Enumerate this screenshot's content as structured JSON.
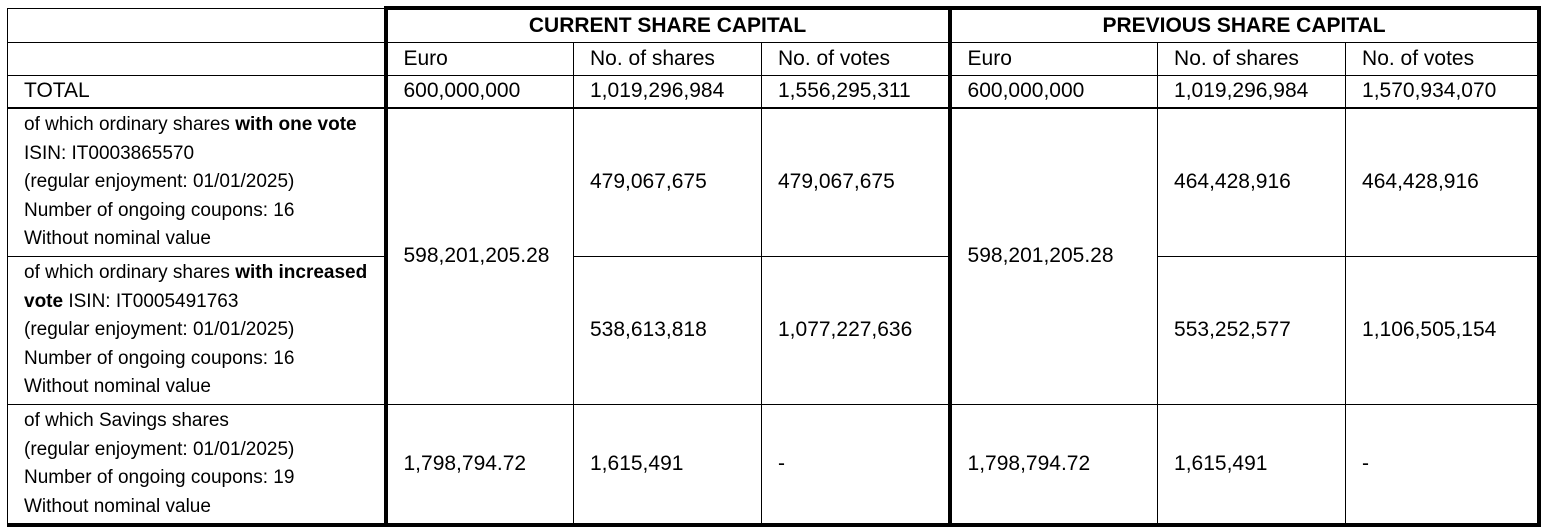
{
  "headers": {
    "current": "CURRENT SHARE CAPITAL",
    "previous": "PREVIOUS SHARE CAPITAL"
  },
  "subheaders": {
    "current": [
      "Euro",
      "No. of shares",
      "No. of votes"
    ],
    "previous": [
      "Euro",
      "No. of shares",
      "No. of votes"
    ]
  },
  "total": {
    "label": "TOTAL",
    "current": [
      "600,000,000",
      "1,019,296,984",
      "1,556,295,311"
    ],
    "previous": [
      "600,000,000",
      "1,019,296,984",
      "1,570,934,070"
    ]
  },
  "ordinary_euro": {
    "current": "598,201,205.28",
    "previous": "598,201,205.28"
  },
  "rows": [
    {
      "desc": {
        "pre": "of which ordinary shares ",
        "bold": "with one vote",
        "post": " ISIN: IT0003865570",
        "line2": "(regular enjoyment: 01/01/2025)",
        "line3": "Number of ongoing coupons: 16",
        "line4": "Without nominal value"
      },
      "current": [
        "479,067,675",
        "479,067,675"
      ],
      "previous": [
        "464,428,916",
        "464,428,916"
      ]
    },
    {
      "desc": {
        "pre": "of which ordinary shares ",
        "bold": "with increased vote",
        "post": " ISIN: IT0005491763",
        "line2": "(regular enjoyment: 01/01/2025)",
        "line3": "Number of ongoing coupons: 16",
        "line4": "Without nominal value"
      },
      "current": [
        "538,613,818",
        "1,077,227,636"
      ],
      "previous": [
        "553,252,577",
        "1,106,505,154"
      ]
    }
  ],
  "savings": {
    "desc": {
      "line1": "of which Savings shares",
      "line2": "(regular enjoyment: 01/01/2025)",
      "line3": "Number of ongoing coupons: 19",
      "line4": "Without nominal value"
    },
    "current": [
      "1,798,794.72",
      "1,615,491",
      "-"
    ],
    "previous": [
      "1,798,794.72",
      "1,615,491",
      "-"
    ]
  }
}
